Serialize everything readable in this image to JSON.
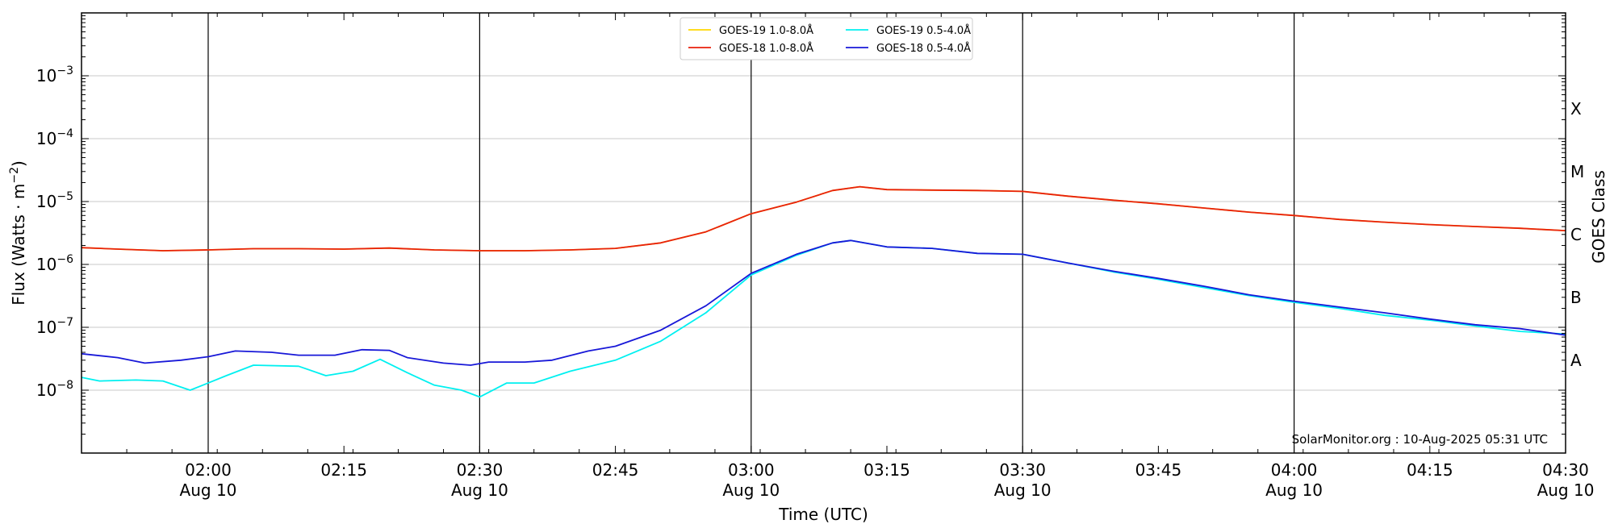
{
  "chart_data": {
    "type": "line",
    "xlabel": "Time (UTC)",
    "ylabel_main": "Flux (Watts · m",
    "ylabel_sup": "−2",
    "ylabel_close": ")",
    "y2label": "GOES Class",
    "yscale": "log",
    "xlim": [
      "01:46",
      "04:30"
    ],
    "ylim": [
      1e-09,
      0.01
    ],
    "grid": true,
    "legend_position": "top-center",
    "credit": "SolarMonitor.org : 10-Aug-2025 05:31 UTC",
    "x_ticks": [
      {
        "time": "02:00",
        "top": "02:00",
        "bottom": "Aug 10"
      },
      {
        "time": "02:15",
        "top": "02:15",
        "bottom": ""
      },
      {
        "time": "02:30",
        "top": "02:30",
        "bottom": "Aug 10"
      },
      {
        "time": "02:45",
        "top": "02:45",
        "bottom": ""
      },
      {
        "time": "03:00",
        "top": "03:00",
        "bottom": "Aug 10"
      },
      {
        "time": "03:15",
        "top": "03:15",
        "bottom": ""
      },
      {
        "time": "03:30",
        "top": "03:30",
        "bottom": "Aug 10"
      },
      {
        "time": "03:45",
        "top": "03:45",
        "bottom": ""
      },
      {
        "time": "04:00",
        "top": "04:00",
        "bottom": "Aug 10"
      },
      {
        "time": "04:15",
        "top": "04:15",
        "bottom": ""
      },
      {
        "time": "04:30",
        "top": "04:30",
        "bottom": "Aug 10"
      }
    ],
    "y_ticks": [
      {
        "value": 1e-08,
        "base": "10",
        "exp": "−8"
      },
      {
        "value": 1e-07,
        "base": "10",
        "exp": "−7"
      },
      {
        "value": 1e-06,
        "base": "10",
        "exp": "−6"
      },
      {
        "value": 1e-05,
        "base": "10",
        "exp": "−5"
      },
      {
        "value": 0.0001,
        "base": "10",
        "exp": "−4"
      },
      {
        "value": 0.001,
        "base": "10",
        "exp": "−3"
      }
    ],
    "goes_classes": [
      {
        "label": "A",
        "value": 3e-08
      },
      {
        "label": "B",
        "value": 3e-07
      },
      {
        "label": "C",
        "value": 3e-06
      },
      {
        "label": "M",
        "value": 3e-05
      },
      {
        "label": "X",
        "value": 0.0003
      }
    ],
    "vlines": [
      "02:00",
      "02:30",
      "03:00",
      "03:30",
      "04:00"
    ],
    "legend": [
      {
        "label": "GOES-19 1.0-8.0Å",
        "color": "#ffd700"
      },
      {
        "label": "GOES-18 1.0-8.0Å",
        "color": "#e8210c"
      },
      {
        "label": "GOES-19 0.5-4.0Å",
        "color": "#00f0f0"
      },
      {
        "label": "GOES-18 0.5-4.0Å",
        "color": "#1818d8"
      }
    ],
    "series": [
      {
        "name": "GOES-19 1.0-8.0Å",
        "color": "#ffd700",
        "points": [
          [
            "01:46",
            1.85e-06
          ],
          [
            "01:50",
            1.75e-06
          ],
          [
            "01:55",
            1.65e-06
          ],
          [
            "02:00",
            1.7e-06
          ],
          [
            "02:05",
            1.78e-06
          ],
          [
            "02:10",
            1.78e-06
          ],
          [
            "02:15",
            1.75e-06
          ],
          [
            "02:20",
            1.82e-06
          ],
          [
            "02:25",
            1.7e-06
          ],
          [
            "02:30",
            1.65e-06
          ],
          [
            "02:35",
            1.65e-06
          ],
          [
            "02:40",
            1.7e-06
          ],
          [
            "02:45",
            1.8e-06
          ],
          [
            "02:50",
            2.2e-06
          ],
          [
            "02:55",
            3.3e-06
          ],
          [
            "03:00",
            6.4e-06
          ],
          [
            "03:05",
            9.8e-06
          ],
          [
            "03:09",
            1.5e-05
          ],
          [
            "03:12",
            1.72e-05
          ],
          [
            "03:15",
            1.55e-05
          ],
          [
            "03:20",
            1.52e-05
          ],
          [
            "03:25",
            1.5e-05
          ],
          [
            "03:30",
            1.45e-05
          ],
          [
            "03:35",
            1.22e-05
          ],
          [
            "03:40",
            1.05e-05
          ],
          [
            "03:45",
            9.2e-06
          ],
          [
            "03:50",
            7.9e-06
          ],
          [
            "03:55",
            6.8e-06
          ],
          [
            "04:00",
            6e-06
          ],
          [
            "04:05",
            5.2e-06
          ],
          [
            "04:10",
            4.7e-06
          ],
          [
            "04:15",
            4.3e-06
          ],
          [
            "04:20",
            4e-06
          ],
          [
            "04:25",
            3.75e-06
          ],
          [
            "04:30",
            3.45e-06
          ]
        ]
      },
      {
        "name": "GOES-18 1.0-8.0Å",
        "color": "#e8210c",
        "points": [
          [
            "01:46",
            1.85e-06
          ],
          [
            "01:50",
            1.75e-06
          ],
          [
            "01:55",
            1.65e-06
          ],
          [
            "02:00",
            1.7e-06
          ],
          [
            "02:05",
            1.78e-06
          ],
          [
            "02:10",
            1.78e-06
          ],
          [
            "02:15",
            1.75e-06
          ],
          [
            "02:20",
            1.82e-06
          ],
          [
            "02:25",
            1.7e-06
          ],
          [
            "02:30",
            1.65e-06
          ],
          [
            "02:35",
            1.65e-06
          ],
          [
            "02:40",
            1.7e-06
          ],
          [
            "02:45",
            1.8e-06
          ],
          [
            "02:50",
            2.2e-06
          ],
          [
            "02:55",
            3.3e-06
          ],
          [
            "03:00",
            6.4e-06
          ],
          [
            "03:05",
            9.8e-06
          ],
          [
            "03:09",
            1.5e-05
          ],
          [
            "03:12",
            1.72e-05
          ],
          [
            "03:15",
            1.55e-05
          ],
          [
            "03:20",
            1.52e-05
          ],
          [
            "03:25",
            1.5e-05
          ],
          [
            "03:30",
            1.45e-05
          ],
          [
            "03:35",
            1.22e-05
          ],
          [
            "03:40",
            1.05e-05
          ],
          [
            "03:45",
            9.2e-06
          ],
          [
            "03:50",
            7.9e-06
          ],
          [
            "03:55",
            6.8e-06
          ],
          [
            "04:00",
            6e-06
          ],
          [
            "04:05",
            5.2e-06
          ],
          [
            "04:10",
            4.7e-06
          ],
          [
            "04:15",
            4.3e-06
          ],
          [
            "04:20",
            4e-06
          ],
          [
            "04:25",
            3.75e-06
          ],
          [
            "04:30",
            3.45e-06
          ]
        ]
      },
      {
        "name": "GOES-19 0.5-4.0Å",
        "color": "#00f0f0",
        "points": [
          [
            "01:46",
            1.6e-08
          ],
          [
            "01:48",
            1.4e-08
          ],
          [
            "01:52",
            1.45e-08
          ],
          [
            "01:55",
            1.4e-08
          ],
          [
            "01:58",
            1e-08
          ],
          [
            "02:00",
            1.3e-08
          ],
          [
            "02:02",
            1.7e-08
          ],
          [
            "02:05",
            2.5e-08
          ],
          [
            "02:10",
            2.4e-08
          ],
          [
            "02:13",
            1.7e-08
          ],
          [
            "02:16",
            2e-08
          ],
          [
            "02:19",
            3.1e-08
          ],
          [
            "02:22",
            1.9e-08
          ],
          [
            "02:25",
            1.2e-08
          ],
          [
            "02:28",
            1e-08
          ],
          [
            "02:30",
            7.8e-09
          ],
          [
            "02:33",
            1.3e-08
          ],
          [
            "02:36",
            1.3e-08
          ],
          [
            "02:40",
            2e-08
          ],
          [
            "02:45",
            3e-08
          ],
          [
            "02:50",
            6e-08
          ],
          [
            "02:55",
            1.7e-07
          ],
          [
            "03:00",
            6.8e-07
          ],
          [
            "03:05",
            1.4e-06
          ],
          [
            "03:09",
            2.2e-06
          ],
          [
            "03:11",
            2.4e-06
          ],
          [
            "03:15",
            1.9e-06
          ],
          [
            "03:20",
            1.8e-06
          ],
          [
            "03:25",
            1.5e-06
          ],
          [
            "03:30",
            1.45e-06
          ],
          [
            "03:35",
            1.05e-06
          ],
          [
            "03:40",
            7.6e-07
          ],
          [
            "03:45",
            5.8e-07
          ],
          [
            "03:50",
            4.3e-07
          ],
          [
            "03:55",
            3.2e-07
          ],
          [
            "04:00",
            2.5e-07
          ],
          [
            "04:05",
            2e-07
          ],
          [
            "04:10",
            1.55e-07
          ],
          [
            "04:15",
            1.3e-07
          ],
          [
            "04:20",
            1.05e-07
          ],
          [
            "04:25",
            8.6e-08
          ],
          [
            "04:30",
            7.8e-08
          ]
        ]
      },
      {
        "name": "GOES-18 0.5-4.0Å",
        "color": "#1818d8",
        "points": [
          [
            "01:46",
            3.8e-08
          ],
          [
            "01:50",
            3.3e-08
          ],
          [
            "01:53",
            2.7e-08
          ],
          [
            "01:57",
            3e-08
          ],
          [
            "02:00",
            3.4e-08
          ],
          [
            "02:03",
            4.2e-08
          ],
          [
            "02:07",
            4e-08
          ],
          [
            "02:10",
            3.6e-08
          ],
          [
            "02:14",
            3.6e-08
          ],
          [
            "02:17",
            4.4e-08
          ],
          [
            "02:20",
            4.3e-08
          ],
          [
            "02:22",
            3.3e-08
          ],
          [
            "02:26",
            2.7e-08
          ],
          [
            "02:29",
            2.5e-08
          ],
          [
            "02:31",
            2.8e-08
          ],
          [
            "02:35",
            2.8e-08
          ],
          [
            "02:38",
            3e-08
          ],
          [
            "02:42",
            4.2e-08
          ],
          [
            "02:45",
            5e-08
          ],
          [
            "02:50",
            9e-08
          ],
          [
            "02:55",
            2.2e-07
          ],
          [
            "03:00",
            7.2e-07
          ],
          [
            "03:05",
            1.45e-06
          ],
          [
            "03:09",
            2.2e-06
          ],
          [
            "03:11",
            2.4e-06
          ],
          [
            "03:15",
            1.9e-06
          ],
          [
            "03:20",
            1.8e-06
          ],
          [
            "03:25",
            1.5e-06
          ],
          [
            "03:30",
            1.45e-06
          ],
          [
            "03:35",
            1.05e-06
          ],
          [
            "03:40",
            7.8e-07
          ],
          [
            "03:45",
            6e-07
          ],
          [
            "03:50",
            4.5e-07
          ],
          [
            "03:55",
            3.3e-07
          ],
          [
            "04:00",
            2.6e-07
          ],
          [
            "04:05",
            2.1e-07
          ],
          [
            "04:10",
            1.7e-07
          ],
          [
            "04:15",
            1.35e-07
          ],
          [
            "04:20",
            1.1e-07
          ],
          [
            "04:25",
            9.5e-08
          ],
          [
            "04:30",
            7.5e-08
          ]
        ]
      }
    ]
  }
}
